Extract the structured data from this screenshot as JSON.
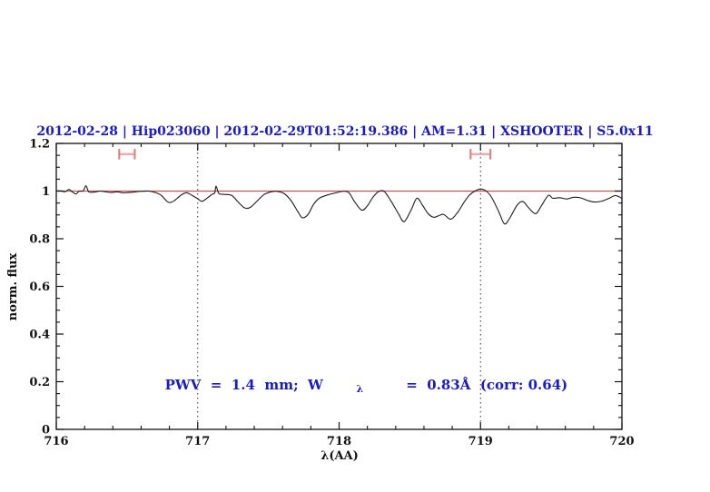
{
  "chart_data": {
    "type": "line",
    "title": "2012-02-28 | Hip023060 | 2012-02-29T01:52:19.386 | AM=1.31 | XSHOOTER | S5.0x11",
    "title_color": "#1a1ac8",
    "xlabel": "λ(AA)",
    "ylabel": "norm. flux",
    "xlim": [
      716,
      720
    ],
    "ylim": [
      0,
      1.2
    ],
    "x_major_ticks": [
      716,
      717,
      718,
      719,
      720
    ],
    "x_tick_labels": [
      "716",
      "717",
      "718",
      "719",
      "720"
    ],
    "x_minor_step": 0.2,
    "y_major_ticks": [
      0,
      0.2,
      0.4,
      0.6,
      0.8,
      1,
      1.2
    ],
    "y_tick_labels": [
      "0",
      "0.2",
      "0.4",
      "0.6",
      "0.8",
      "1",
      "1.2"
    ],
    "y_minor_step": 0.05,
    "grid": "off",
    "legend": "none",
    "frame_color": "#111111",
    "reference_line": {
      "y": 1.0,
      "color": "#c85454"
    },
    "dotted_vlines": {
      "x": [
        717,
        719
      ],
      "color": "#333333"
    },
    "range_markers": [
      {
        "x_center": 716.5,
        "x_half_width": 0.055,
        "y": 1.155,
        "cap_half_height": 0.022,
        "bar_color": "#f2a8a8",
        "cap_color": "#e27979"
      },
      {
        "x_center": 719.0,
        "x_half_width": 0.07,
        "y": 1.155,
        "cap_half_height": 0.022,
        "bar_color": "#f2a8a8",
        "cap_color": "#e27979"
      }
    ],
    "series": [
      {
        "name": "normalized spectrum",
        "color": "#1c1c1c",
        "points": [
          [
            716.0,
            1.0
          ],
          [
            716.03,
            1.001
          ],
          [
            716.06,
            0.997
          ],
          [
            716.09,
            1.007
          ],
          [
            716.11,
            0.998
          ],
          [
            716.14,
            0.988
          ],
          [
            716.16,
            0.999
          ],
          [
            716.19,
            1.001
          ],
          [
            716.21,
            1.022
          ],
          [
            716.23,
            0.997
          ],
          [
            716.27,
            0.996
          ],
          [
            716.31,
            1.0
          ],
          [
            716.35,
            0.997
          ],
          [
            716.39,
            0.994
          ],
          [
            716.43,
            0.997
          ],
          [
            716.47,
            0.993
          ],
          [
            716.51,
            0.994
          ],
          [
            716.55,
            0.996
          ],
          [
            716.6,
            0.999
          ],
          [
            716.65,
            1.0
          ],
          [
            716.7,
            0.994
          ],
          [
            716.74,
            0.983
          ],
          [
            716.79,
            0.954
          ],
          [
            716.83,
            0.958
          ],
          [
            716.88,
            0.982
          ],
          [
            716.92,
            0.993
          ],
          [
            716.96,
            0.982
          ],
          [
            717.0,
            0.968
          ],
          [
            717.03,
            0.957
          ],
          [
            717.07,
            0.972
          ],
          [
            717.1,
            0.986
          ],
          [
            717.12,
            0.992
          ],
          [
            717.13,
            1.021
          ],
          [
            717.15,
            0.99
          ],
          [
            717.19,
            0.986
          ],
          [
            717.24,
            0.982
          ],
          [
            717.28,
            0.958
          ],
          [
            717.33,
            0.93
          ],
          [
            717.37,
            0.931
          ],
          [
            717.42,
            0.958
          ],
          [
            717.47,
            0.986
          ],
          [
            717.52,
            0.997
          ],
          [
            717.56,
            0.999
          ],
          [
            717.61,
            0.99
          ],
          [
            717.66,
            0.96
          ],
          [
            717.71,
            0.912
          ],
          [
            717.74,
            0.888
          ],
          [
            717.78,
            0.902
          ],
          [
            717.82,
            0.945
          ],
          [
            717.86,
            0.97
          ],
          [
            717.92,
            0.984
          ],
          [
            717.98,
            0.993
          ],
          [
            718.03,
            0.999
          ],
          [
            718.07,
            0.993
          ],
          [
            718.11,
            0.955
          ],
          [
            718.16,
            0.92
          ],
          [
            718.2,
            0.938
          ],
          [
            718.24,
            0.975
          ],
          [
            718.28,
            0.998
          ],
          [
            718.32,
            0.998
          ],
          [
            718.37,
            0.955
          ],
          [
            718.42,
            0.905
          ],
          [
            718.46,
            0.872
          ],
          [
            718.51,
            0.922
          ],
          [
            718.55,
            0.97
          ],
          [
            718.59,
            0.94
          ],
          [
            718.63,
            0.905
          ],
          [
            718.67,
            0.89
          ],
          [
            718.71,
            0.898
          ],
          [
            718.74,
            0.902
          ],
          [
            718.79,
            0.882
          ],
          [
            718.84,
            0.912
          ],
          [
            718.88,
            0.95
          ],
          [
            718.92,
            0.982
          ],
          [
            718.96,
            1.0
          ],
          [
            719.0,
            1.009
          ],
          [
            719.04,
            1.0
          ],
          [
            719.08,
            0.972
          ],
          [
            719.13,
            0.912
          ],
          [
            719.17,
            0.862
          ],
          [
            719.21,
            0.89
          ],
          [
            719.26,
            0.942
          ],
          [
            719.3,
            0.956
          ],
          [
            719.34,
            0.93
          ],
          [
            719.39,
            0.905
          ],
          [
            719.43,
            0.938
          ],
          [
            719.48,
            0.982
          ],
          [
            719.51,
            0.97
          ],
          [
            719.56,
            0.972
          ],
          [
            719.61,
            0.967
          ],
          [
            719.66,
            0.974
          ],
          [
            719.71,
            0.971
          ],
          [
            719.76,
            0.96
          ],
          [
            719.81,
            0.954
          ],
          [
            719.86,
            0.958
          ],
          [
            719.91,
            0.97
          ],
          [
            719.95,
            0.981
          ],
          [
            719.98,
            0.976
          ],
          [
            720.0,
            0.969
          ]
        ]
      }
    ],
    "annotation": {
      "pre": "PWV  =  1.4  mm;  W",
      "sub": "λ",
      "post": "  =  0.83Å  (corr: 0.64)",
      "color": "#1a1ac8",
      "x": 716.53,
      "y": 0.17
    }
  }
}
